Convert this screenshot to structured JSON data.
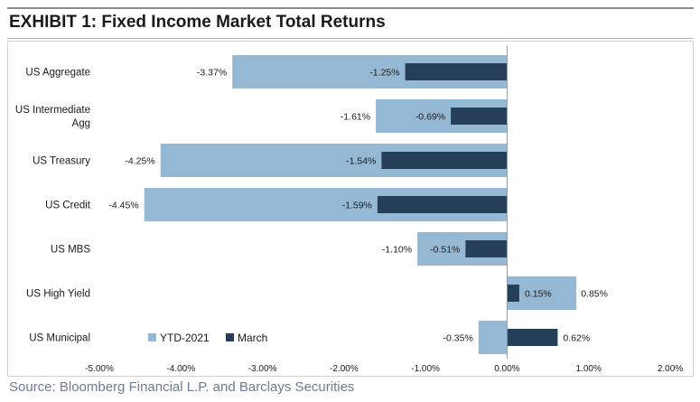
{
  "exhibit": {
    "title": "EXHIBIT 1:  Fixed Income Market Total Returns",
    "source": "Source: Bloomberg Financial L.P. and Barclays Securities"
  },
  "chart_data": {
    "type": "bar",
    "orientation": "horizontal",
    "title": "EXHIBIT 1:  Fixed Income Market Total Returns",
    "categories": [
      "US Aggregate",
      "US Intermediate Agg",
      "US Treasury",
      "US Credit",
      "US MBS",
      "US High Yield",
      "US Municipal"
    ],
    "category_lines": [
      [
        "US Aggregate"
      ],
      [
        "US Intermediate",
        "Agg"
      ],
      [
        "US Treasury"
      ],
      [
        "US Credit"
      ],
      [
        "US MBS"
      ],
      [
        "US High Yield"
      ],
      [
        "US Municipal"
      ]
    ],
    "series": [
      {
        "name": "YTD-2021",
        "color": "#95b8d4",
        "values": [
          -3.37,
          -1.61,
          -4.25,
          -4.45,
          -1.1,
          0.85,
          -0.35
        ],
        "labels": [
          "-3.37%",
          "-1.61%",
          "-4.25%",
          "-4.45%",
          "-1.10%",
          "0.85%",
          "-0.35%"
        ]
      },
      {
        "name": "March",
        "color": "#243f57",
        "values": [
          -1.25,
          -0.69,
          -1.54,
          -1.59,
          -0.51,
          0.15,
          0.62
        ],
        "labels": [
          "-1.25%",
          "-0.69%",
          "-1.54%",
          "-1.59%",
          "-0.51%",
          "0.15%",
          "0.62%"
        ]
      }
    ],
    "xlim": [
      -5,
      2
    ],
    "ticks": [
      -5,
      -4,
      -3,
      -2,
      -1,
      0,
      1,
      2
    ],
    "tick_labels": [
      "-5.00%",
      "-4.00%",
      "-3.00%",
      "-2.00%",
      "-1.00%",
      "0.00%",
      "1.00%",
      "2.00%"
    ],
    "legend": {
      "position": "bottom-left",
      "entries": [
        "YTD-2021",
        "March"
      ]
    },
    "grid": false
  }
}
